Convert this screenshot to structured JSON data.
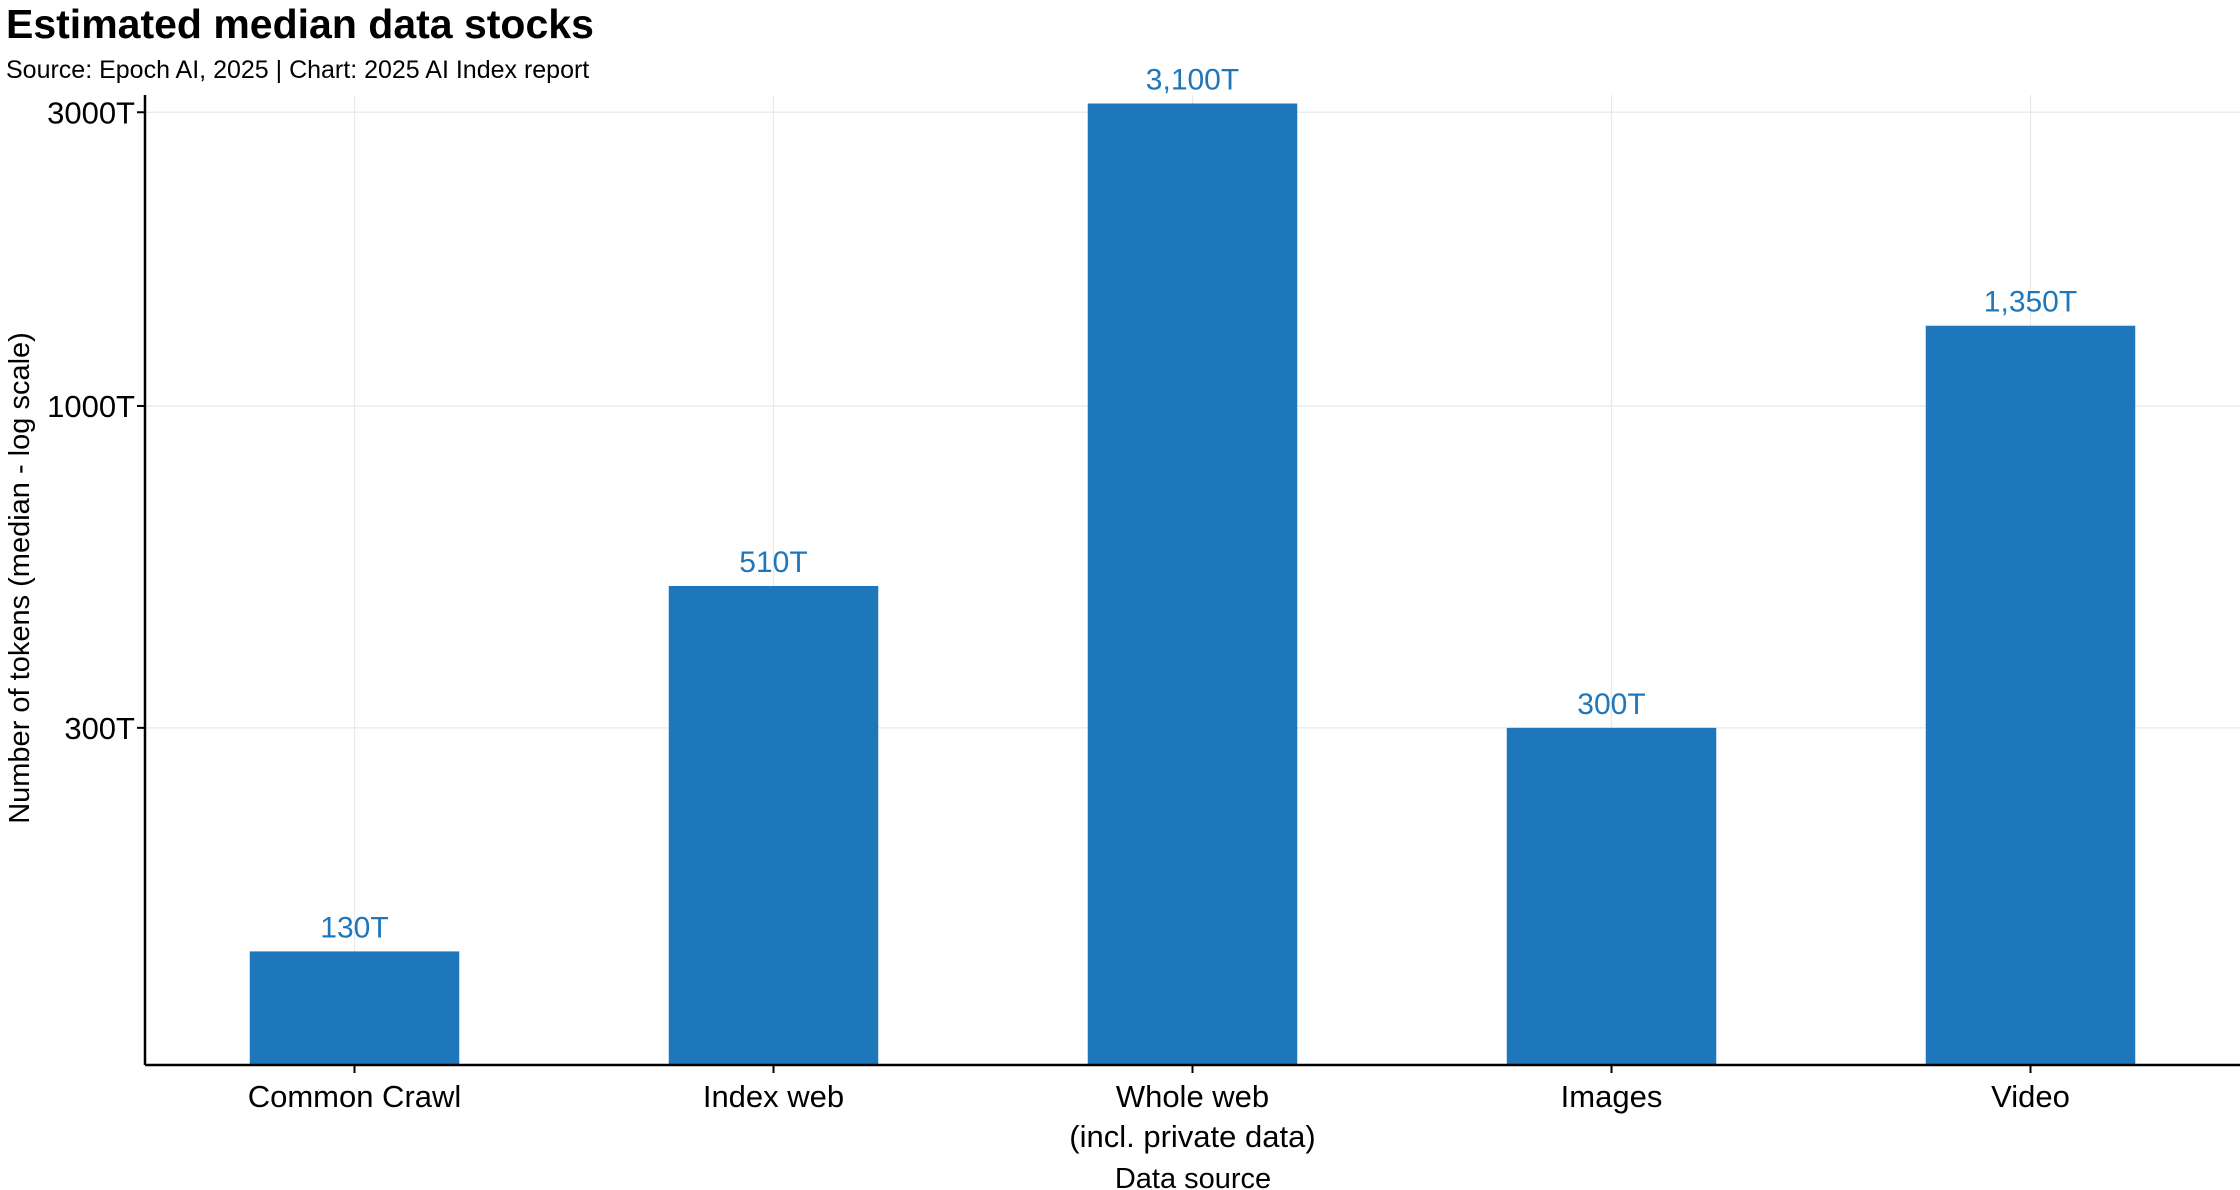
{
  "chart_data": {
    "type": "bar",
    "title": "Estimated median data stocks",
    "subtitle": "Source: Epoch AI, 2025 | Chart: 2025 AI Index report",
    "xlabel": "Data source",
    "ylabel": "Number of tokens (median - log scale)",
    "yscale": "log",
    "ylim": [
      85,
      3200
    ],
    "yticks": [
      300,
      1000,
      3000
    ],
    "ytick_labels": [
      "300T",
      "1000T",
      "3000T"
    ],
    "categories": [
      [
        "Common Crawl"
      ],
      [
        "Index web"
      ],
      [
        "Whole web",
        "(incl. private data)"
      ],
      [
        "Images"
      ],
      [
        "Video"
      ]
    ],
    "values": [
      130,
      510,
      3100,
      300,
      1350
    ],
    "value_labels": [
      "130T",
      "510T",
      "3,100T",
      "300T",
      "1,350T"
    ],
    "grid": true,
    "bar_color": "#1f77bb",
    "label_color": "#1f77bb"
  }
}
